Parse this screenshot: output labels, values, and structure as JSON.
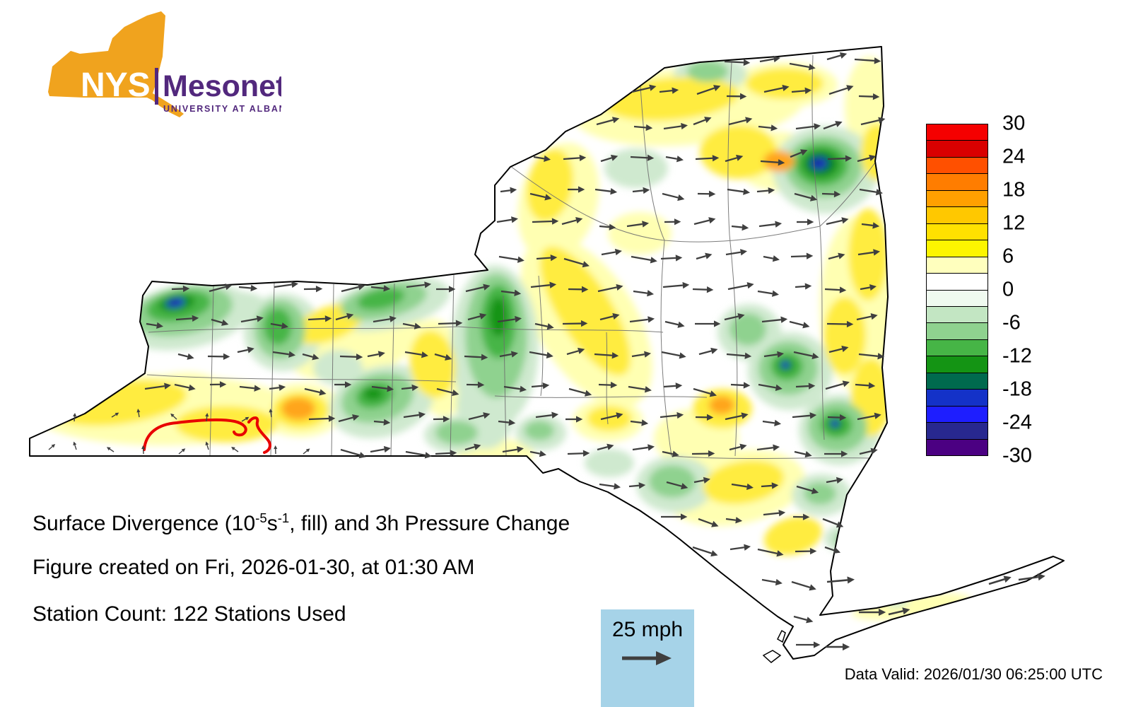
{
  "logo": {
    "acronym": "NYS",
    "wordmark": "Mesonet",
    "tagline": "UNIVERSITY AT ALBANY",
    "state_color": "#F0A31E",
    "purple": "#52287D"
  },
  "colorbar": {
    "tick_values": [
      "30",
      "24",
      "18",
      "12",
      "6",
      "0",
      "-6",
      "-12",
      "-18",
      "-24",
      "-30"
    ],
    "band_colors": [
      "#f50000",
      "#d90000",
      "#ff5000",
      "#ff7d00",
      "#ffa000",
      "#ffc800",
      "#ffe100",
      "#fdf500",
      "#ffffbe",
      "#ffffff",
      "#f0faf0",
      "#c3e6c3",
      "#8fd28f",
      "#46b546",
      "#149414",
      "#006a4e",
      "#1432c8",
      "#1e1eff",
      "#28288f",
      "#4b0082"
    ]
  },
  "map": {
    "description": "New York State surface divergence fill with wind vectors",
    "arrow_color": "#3f3f3f",
    "contour_color": "#e80000"
  },
  "caption": {
    "title": {
      "pre": "Surface Divergence (10",
      "sup1": "-5",
      "mid": "s",
      "sup2": "-1",
      "post": ", fill) and 3h Pressure Change"
    },
    "created": "Figure created on Fri, 2026-01-30, at 01:30 AM",
    "stations": "Station Count: 122 Stations Used"
  },
  "wind_key": {
    "label": "25 mph",
    "box_color": "#a6d3e8"
  },
  "footer": {
    "data_valid": "Data Valid: 2026/01/30 06:25:00 UTC"
  }
}
